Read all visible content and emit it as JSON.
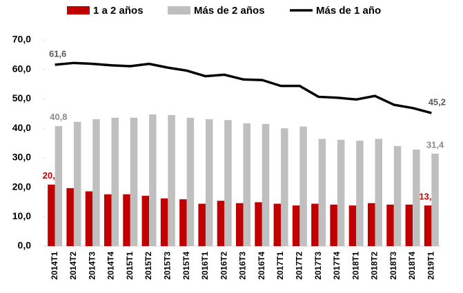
{
  "chart_data": {
    "type": "bar",
    "categories": [
      "2014T1",
      "2014T2",
      "2014T3",
      "2014T4",
      "2015T1",
      "2015T2",
      "2015T3",
      "2015T4",
      "2016T1",
      "2016T2",
      "2016T3",
      "2016T4",
      "2017T1",
      "2017T2",
      "2017T3",
      "2017T4",
      "2018T1",
      "2018T2",
      "2018T3",
      "2018T4",
      "2019T1"
    ],
    "series": [
      {
        "name": "1 a 2 años",
        "type": "bar",
        "color": "#c00000",
        "label_color": "#c00000",
        "values": [
          20.9,
          19.7,
          18.6,
          17.6,
          17.6,
          17.1,
          16.2,
          15.9,
          14.4,
          15.4,
          14.6,
          14.9,
          14.4,
          13.8,
          14.4,
          14.1,
          13.8,
          14.6,
          14.1,
          14.1,
          13.8
        ],
        "value_labels": [
          "20,9",
          null,
          null,
          null,
          null,
          null,
          null,
          null,
          null,
          null,
          null,
          null,
          null,
          null,
          null,
          null,
          null,
          null,
          null,
          null,
          "13,8"
        ]
      },
      {
        "name": "Más de 2 años",
        "type": "bar",
        "color": "#bfbfbf",
        "label_color": "#8c8c8c",
        "values": [
          40.8,
          42.2,
          43.1,
          43.6,
          43.6,
          44.7,
          44.5,
          43.6,
          43.1,
          42.8,
          41.7,
          41.5,
          40.0,
          40.6,
          36.4,
          36.1,
          35.8,
          36.4,
          34.0,
          32.8,
          31.4
        ],
        "value_labels": [
          "40,8",
          null,
          null,
          null,
          null,
          null,
          null,
          null,
          null,
          null,
          null,
          null,
          null,
          null,
          null,
          null,
          null,
          null,
          null,
          null,
          "31,4"
        ]
      },
      {
        "name": "Más de 1 año",
        "type": "line",
        "color": "#000000",
        "label_color": "#595959",
        "values": [
          61.6,
          62.2,
          61.9,
          61.4,
          61.1,
          61.9,
          60.6,
          59.6,
          57.7,
          58.2,
          56.6,
          56.4,
          54.4,
          54.4,
          50.7,
          50.4,
          49.8,
          51.0,
          48.0,
          46.9,
          45.2
        ],
        "value_labels": [
          "61,6",
          null,
          null,
          null,
          null,
          null,
          null,
          null,
          null,
          null,
          null,
          null,
          null,
          null,
          null,
          null,
          null,
          null,
          null,
          null,
          "45,2"
        ]
      }
    ],
    "ylim": [
      0,
      70
    ],
    "yticks": [
      {
        "value": 0,
        "label": "0,0"
      },
      {
        "value": 10,
        "label": "10,0"
      },
      {
        "value": 20,
        "label": "20,0"
      },
      {
        "value": 30,
        "label": "30,0"
      },
      {
        "value": 40,
        "label": "40,0"
      },
      {
        "value": 50,
        "label": "50,0"
      },
      {
        "value": 60,
        "label": "60,0"
      },
      {
        "value": 70,
        "label": "70,0"
      }
    ],
    "legend": "top"
  }
}
